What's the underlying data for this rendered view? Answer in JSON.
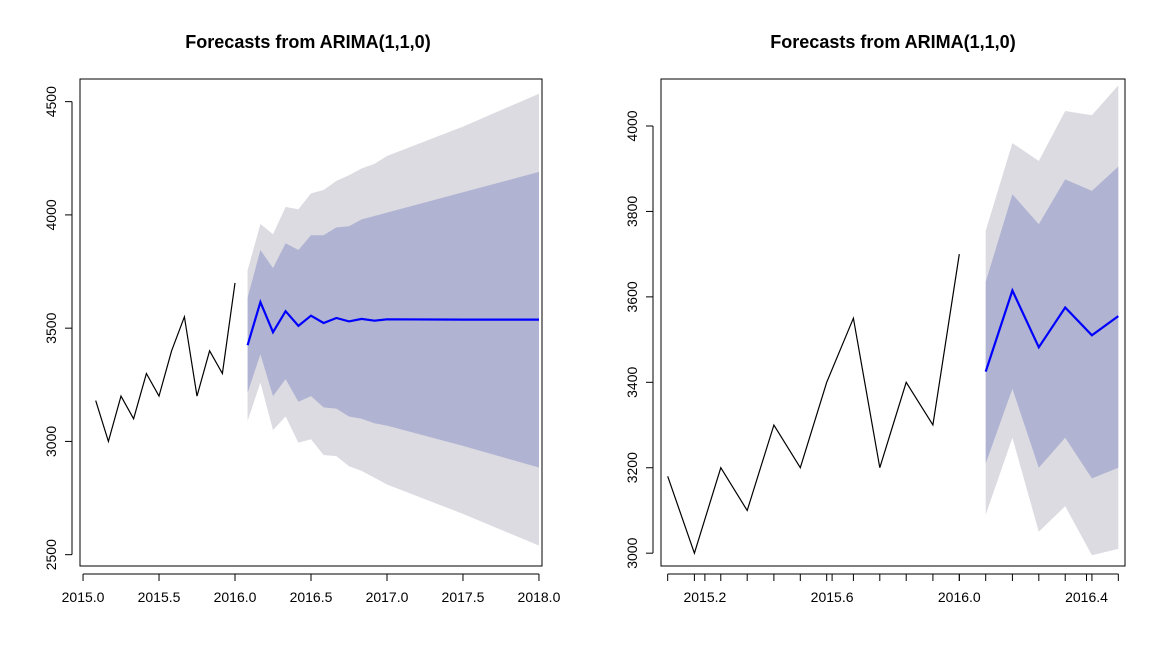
{
  "colors": {
    "history": "#000000",
    "forecast": "#0000ff",
    "band80": "#b0b3d2",
    "band95": "#dbdbe1",
    "frame": "#000000"
  },
  "chart_data": [
    {
      "type": "line",
      "title": "Forecasts from ARIMA(1,1,0)",
      "xlabel": "",
      "ylabel": "",
      "xlim": [
        2014.98,
        2018.02
      ],
      "ylim": [
        2450,
        4600
      ],
      "x_ticks": [
        2015.0,
        2015.5,
        2016.0,
        2016.5,
        2017.0,
        2017.5,
        2018.0
      ],
      "x_tick_labels": [
        "2015.0",
        "2015.5",
        "2016.0",
        "2016.5",
        "2017.0",
        "2017.5",
        "2018.0"
      ],
      "y_ticks": [
        2500,
        3000,
        3500,
        4000,
        4500
      ],
      "y_tick_labels": [
        "2500",
        "3000",
        "3500",
        "4000",
        "4500"
      ],
      "series": [
        {
          "role": "observed",
          "x": [
            2015.083,
            2015.167,
            2015.25,
            2015.333,
            2015.417,
            2015.5,
            2015.583,
            2015.667,
            2015.75,
            2015.833,
            2015.917,
            2016.0
          ],
          "values": [
            3180,
            3000,
            3200,
            3100,
            3300,
            3200,
            3400,
            3550,
            3200,
            3400,
            3300,
            3700
          ]
        },
        {
          "role": "forecast",
          "x": [
            2016.083,
            2016.167,
            2016.25,
            2016.333,
            2016.417,
            2016.5,
            2016.583,
            2016.667,
            2016.75,
            2016.833,
            2016.917,
            2017.0,
            2017.5,
            2018.0
          ],
          "values": [
            3425,
            3615,
            3482,
            3575,
            3510,
            3555,
            3523,
            3545,
            3530,
            3541,
            3533,
            3539,
            3538,
            3538
          ],
          "lo80": [
            3215,
            3385,
            3200,
            3275,
            3175,
            3200,
            3150,
            3145,
            3110,
            3100,
            3080,
            3070,
            2980,
            2885
          ],
          "hi80": [
            3635,
            3845,
            3765,
            3875,
            3845,
            3910,
            3910,
            3945,
            3950,
            3980,
            3995,
            4010,
            4100,
            4190
          ],
          "lo95": [
            3090,
            3260,
            3050,
            3110,
            2995,
            3010,
            2940,
            2935,
            2890,
            2870,
            2840,
            2810,
            2680,
            2540
          ],
          "hi95": [
            3755,
            3960,
            3915,
            4035,
            4025,
            4095,
            4110,
            4150,
            4175,
            4205,
            4225,
            4260,
            4390,
            4535
          ]
        }
      ]
    },
    {
      "type": "line",
      "title": "Forecasts from ARIMA(1,1,0)",
      "xlabel": "",
      "ylabel": "",
      "xlim": [
        2015.062,
        2016.521
      ],
      "ylim": [
        2970,
        4110
      ],
      "x_ticks": [
        2015.2,
        2015.6,
        2016.0,
        2016.4
      ],
      "x_tick_labels": [
        "2015.2",
        "2015.6",
        "2016.0",
        "2016.4"
      ],
      "x_minor_ticks": [
        2015.083,
        2015.167,
        2015.25,
        2015.333,
        2015.417,
        2015.5,
        2015.583,
        2015.667,
        2015.75,
        2015.833,
        2015.917,
        2016.0,
        2016.083,
        2016.167,
        2016.25,
        2016.333,
        2016.417,
        2016.5
      ],
      "y_ticks": [
        3000,
        3200,
        3400,
        3600,
        3800,
        4000
      ],
      "y_tick_labels": [
        "3000",
        "3200",
        "3400",
        "3600",
        "3800",
        "4000"
      ],
      "series": [
        {
          "role": "observed",
          "x": [
            2015.083,
            2015.167,
            2015.25,
            2015.333,
            2015.417,
            2015.5,
            2015.583,
            2015.667,
            2015.75,
            2015.833,
            2015.917,
            2016.0
          ],
          "values": [
            3180,
            3000,
            3200,
            3100,
            3300,
            3200,
            3400,
            3550,
            3200,
            3400,
            3300,
            3700
          ]
        },
        {
          "role": "forecast",
          "x": [
            2016.083,
            2016.167,
            2016.25,
            2016.333,
            2016.417,
            2016.5
          ],
          "values": [
            3425,
            3615,
            3482,
            3575,
            3510,
            3555
          ],
          "lo80": [
            3210,
            3385,
            3200,
            3270,
            3175,
            3200
          ],
          "hi80": [
            3635,
            3840,
            3770,
            3875,
            3848,
            3905
          ],
          "lo95": [
            3090,
            3270,
            3050,
            3110,
            2995,
            3010
          ],
          "hi95": [
            3755,
            3960,
            3918,
            4035,
            4025,
            4095
          ]
        }
      ]
    }
  ]
}
